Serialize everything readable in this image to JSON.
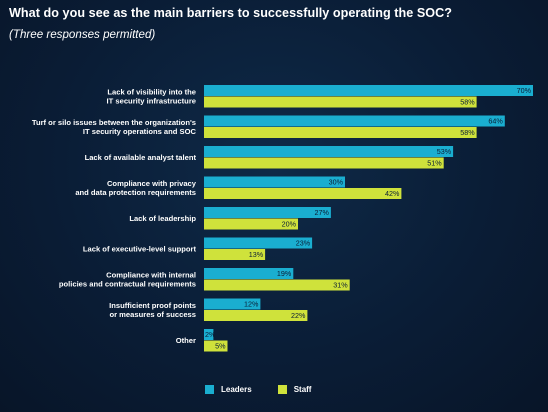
{
  "title": "What do you see as the main barriers to successfully operating the SOC?",
  "subtitle": "(Three responses permitted)",
  "colors": {
    "leaders": "#1aaed0",
    "staff": "#cfe23b",
    "background": "#0a1d36"
  },
  "chart_data": {
    "type": "bar",
    "orientation": "horizontal",
    "categories": [
      [
        "Lack of visibility into the",
        "IT security infrastructure"
      ],
      [
        "Turf or silo issues between the organization's",
        "IT security operations and SOC"
      ],
      [
        "Lack of available analyst talent"
      ],
      [
        "Compliance with privacy",
        "and data protection requirements"
      ],
      [
        "Lack of leadership"
      ],
      [
        "Lack of executive-level support"
      ],
      [
        "Compliance with internal",
        "policies and contractual requirements"
      ],
      [
        "Insufficient proof points",
        "or measures of success"
      ],
      [
        "Other"
      ]
    ],
    "series": [
      {
        "name": "Leaders",
        "values": [
          70,
          64,
          53,
          30,
          27,
          23,
          19,
          12,
          2
        ]
      },
      {
        "name": "Staff",
        "values": [
          58,
          58,
          51,
          42,
          20,
          13,
          31,
          22,
          5
        ]
      }
    ],
    "value_suffix": "%",
    "xlim": [
      0,
      70
    ],
    "grid": false,
    "legend_position": "bottom"
  }
}
